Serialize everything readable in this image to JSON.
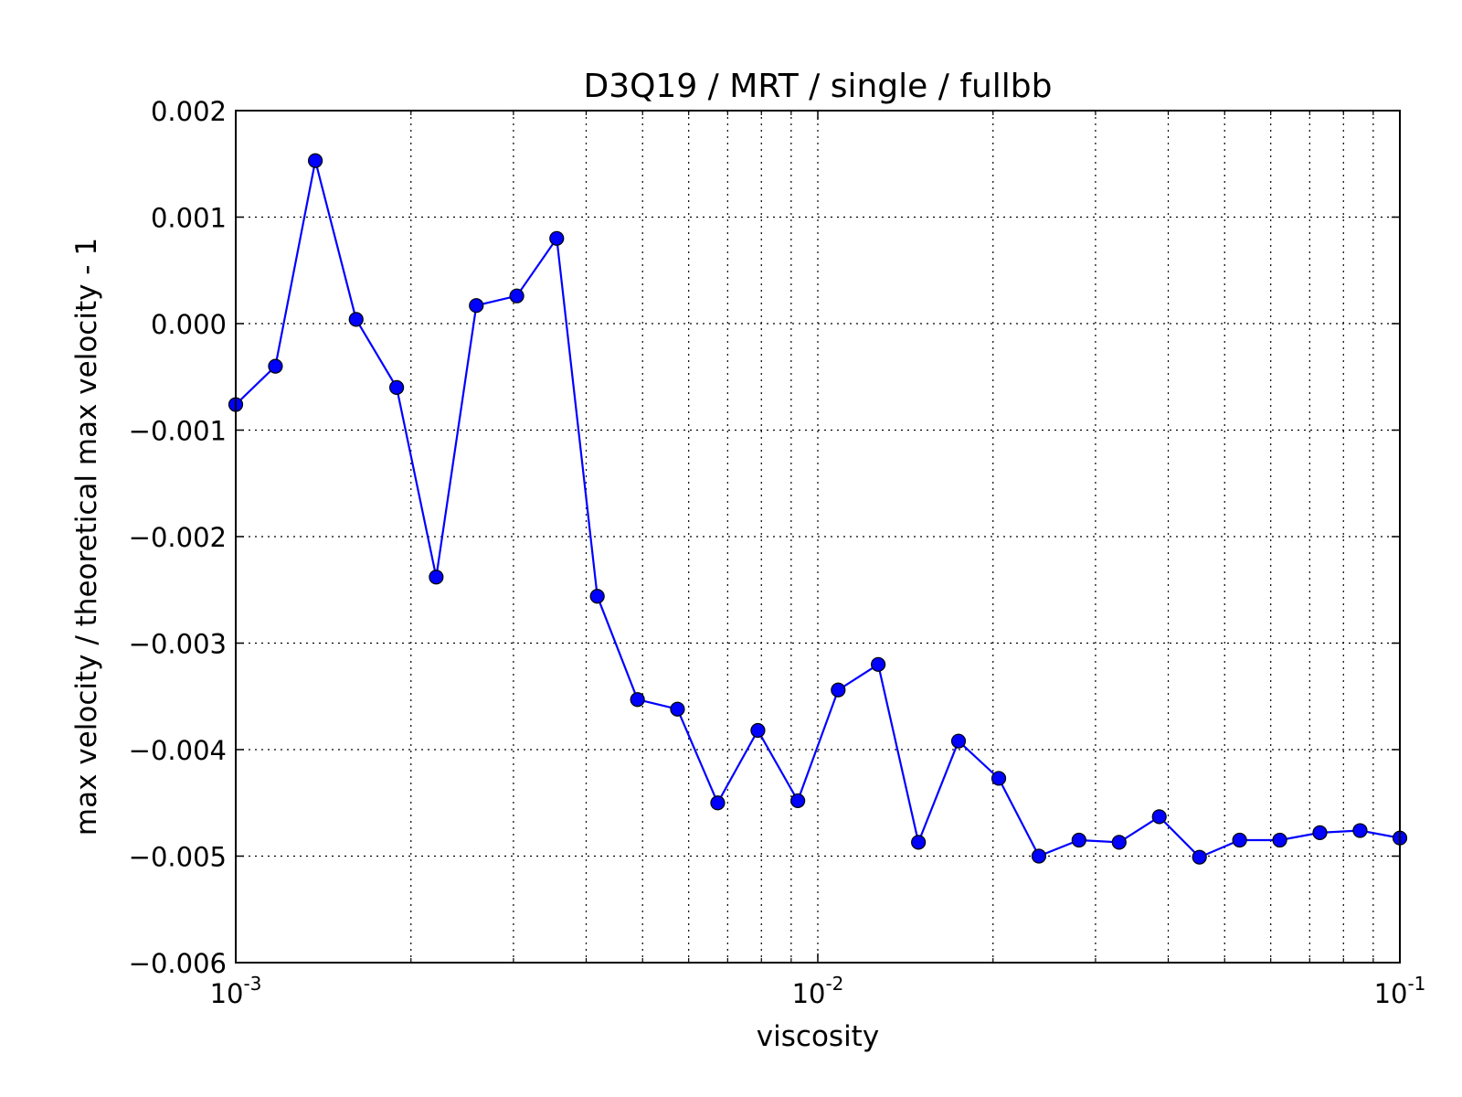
{
  "chart_data": {
    "type": "line",
    "title": "D3Q19 / MRT / single / fullbb",
    "xlabel": "viscosity",
    "ylabel": "max velocity / theoretical max velocity - 1",
    "x_scale": "log",
    "xlim": [
      0.001,
      0.1
    ],
    "ylim": [
      -0.006,
      0.002
    ],
    "x_ticks": [
      {
        "value": 0.001,
        "base": "10",
        "exp": "-3"
      },
      {
        "value": 0.01,
        "base": "10",
        "exp": "-2"
      },
      {
        "value": 0.1,
        "base": "10",
        "exp": "-1"
      }
    ],
    "y_ticks": [
      {
        "value": 0.002,
        "label": "0.002"
      },
      {
        "value": 0.001,
        "label": "0.001"
      },
      {
        "value": 0.0,
        "label": "0.000"
      },
      {
        "value": -0.001,
        "label": "−0.001"
      },
      {
        "value": -0.002,
        "label": "−0.002"
      },
      {
        "value": -0.003,
        "label": "−0.003"
      },
      {
        "value": -0.004,
        "label": "−0.004"
      },
      {
        "value": -0.005,
        "label": "−0.005"
      },
      {
        "value": -0.006,
        "label": "−0.006"
      }
    ],
    "grid": true,
    "series": [
      {
        "color": "#0000ff",
        "marker": "circle",
        "x": [
          0.001,
          0.00117,
          0.00137,
          0.00161,
          0.00189,
          0.00221,
          0.00259,
          0.00304,
          0.00356,
          0.00418,
          0.0049,
          0.00574,
          0.00673,
          0.00789,
          0.00924,
          0.01084,
          0.0127,
          0.01489,
          0.01745,
          0.02046,
          0.02398,
          0.0281,
          0.03294,
          0.03861,
          0.04526,
          0.05305,
          0.06218,
          0.07288,
          0.08543,
          0.1
        ],
        "y": [
          -0.00076,
          -0.0004,
          0.00153,
          4e-05,
          -0.0006,
          -0.00238,
          0.00017,
          0.00026,
          0.0008,
          -0.00256,
          -0.00353,
          -0.00362,
          -0.0045,
          -0.00382,
          -0.00448,
          -0.00344,
          -0.0032,
          -0.00487,
          -0.00392,
          -0.00427,
          -0.005,
          -0.00485,
          -0.00487,
          -0.00463,
          -0.00501,
          -0.00485,
          -0.00485,
          -0.00478,
          -0.00476,
          -0.00483
        ]
      }
    ]
  }
}
